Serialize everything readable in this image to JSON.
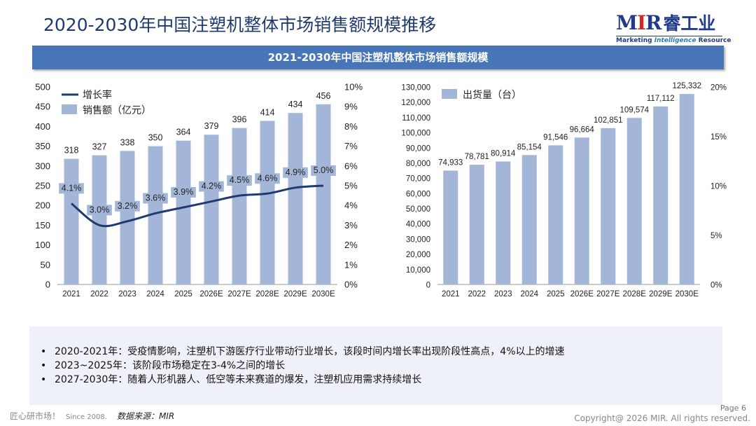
{
  "page": {
    "title": "2020-2030年中国注塑机整体市场销售额规模推移",
    "banner": "2021-2030年中国注塑机整体市场销售额规模",
    "logo": {
      "mir": "MIR",
      "cn": "睿工业",
      "sub_a": "Marketing ",
      "sub_b": "Intelligence",
      "sub_c": " Resource"
    },
    "notes": [
      "2020-2021年：受疫情影响，注塑机下游医疗行业带动行业增长，该段时间内增长率出现阶段性高点，4%以上的增速",
      "2023~2025年：该阶段市场稳定在3-4%之间的增长",
      "2027-2030年：随着人形机器人、低空等未来赛道的爆发，注塑机应用需求持续增长"
    ],
    "footer": {
      "left": "匠心研市场！",
      "since": "Since 2008.",
      "source": "数据来源：MIR",
      "page": "Page 6",
      "copyright": "Copyright@ 2026 MIR. All rights reserved."
    }
  },
  "colors": {
    "bar": "#a4b6d8",
    "line": "#1f3b6e",
    "banner": "#4874b8",
    "title": "#1f3b6e"
  },
  "chart_data": [
    {
      "type": "bar",
      "categories": [
        "2021",
        "2022",
        "2023",
        "2024",
        "2025",
        "2026E",
        "2027E",
        "2028E",
        "2029E",
        "2030E"
      ],
      "series": [
        {
          "name": "销售额（亿元）",
          "type": "bar",
          "axis": "left",
          "values": [
            318,
            327,
            338,
            350,
            364,
            379,
            396,
            414,
            434,
            456
          ],
          "labels": [
            "318",
            "327",
            "338",
            "350",
            "364",
            "379",
            "396",
            "414",
            "434",
            "456"
          ]
        },
        {
          "name": "增长率",
          "type": "line",
          "axis": "right",
          "values": [
            4.1,
            3.0,
            3.2,
            3.6,
            3.9,
            4.2,
            4.5,
            4.6,
            4.9,
            5.0
          ],
          "labels": [
            "4.1%",
            "3.0%",
            "3.2%",
            "3.6%",
            "3.9%",
            "4.2%",
            "4.5%",
            "4.6%",
            "4.9%",
            "5.0%"
          ]
        }
      ],
      "ylim": [
        0,
        500
      ],
      "yticks": [
        "0",
        "50",
        "100",
        "150",
        "200",
        "250",
        "300",
        "350",
        "400",
        "450",
        "500"
      ],
      "y2lim": [
        0,
        10
      ],
      "y2ticks": [
        "0%",
        "1%",
        "2%",
        "3%",
        "4%",
        "5%",
        "6%",
        "7%",
        "8%",
        "9%",
        "10%"
      ],
      "legend_position": "top-left",
      "grid": false
    },
    {
      "type": "bar",
      "categories": [
        "2021",
        "2022",
        "2023",
        "2024",
        "2025",
        "2026E",
        "2027E",
        "2028E",
        "2029E",
        "2030E"
      ],
      "series": [
        {
          "name": "出货量（台）",
          "type": "bar",
          "axis": "left",
          "values": [
            74933,
            78781,
            80914,
            85154,
            91546,
            96664,
            102851,
            109574,
            117112,
            125332
          ],
          "labels": [
            "74,933",
            "78,781",
            "80,914",
            "85,154",
            "91,546",
            "96,664",
            "102,851",
            "109,574",
            "117,112",
            "125,332"
          ]
        }
      ],
      "ylim": [
        0,
        130000
      ],
      "yticks": [
        "0",
        "10,000",
        "20,000",
        "30,000",
        "40,000",
        "50,000",
        "60,000",
        "70,000",
        "80,000",
        "90,000",
        "100,000",
        "110,000",
        "120,000",
        "130,000"
      ],
      "y2lim": [
        0,
        20
      ],
      "y2ticks": [
        "0%",
        "5%",
        "10%",
        "15%",
        "20%"
      ],
      "legend_position": "top-left",
      "grid": false
    }
  ]
}
